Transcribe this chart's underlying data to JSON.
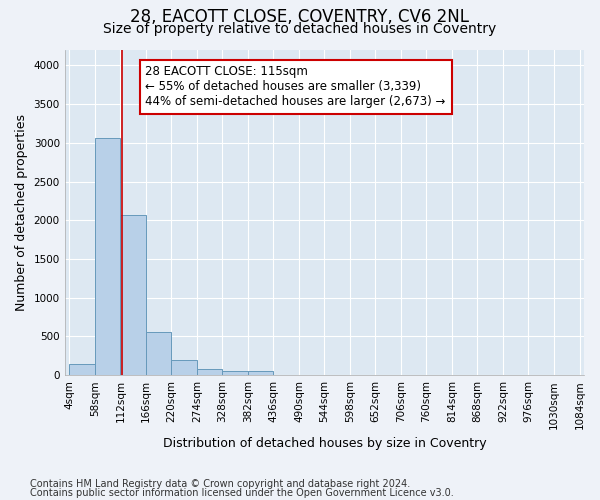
{
  "title_line1": "28, EACOTT CLOSE, COVENTRY, CV6 2NL",
  "title_line2": "Size of property relative to detached houses in Coventry",
  "xlabel": "Distribution of detached houses by size in Coventry",
  "ylabel": "Number of detached properties",
  "bar_edges": [
    4,
    58,
    112,
    166,
    220,
    274,
    328,
    382,
    436,
    490,
    544,
    598,
    652,
    706,
    760,
    814,
    868,
    922,
    976,
    1030,
    1084
  ],
  "bar_heights": [
    150,
    3060,
    2070,
    560,
    200,
    75,
    60,
    50,
    0,
    0,
    0,
    0,
    0,
    0,
    0,
    0,
    0,
    0,
    0,
    0
  ],
  "bar_color": "#b8d0e8",
  "bar_edgecolor": "#6699bb",
  "vline_x": 115,
  "vline_color": "#cc0000",
  "annotation_text": "28 EACOTT CLOSE: 115sqm\n← 55% of detached houses are smaller (3,339)\n44% of semi-detached houses are larger (2,673) →",
  "annotation_box_color": "#cc0000",
  "annotation_bg": "white",
  "ylim": [
    0,
    4200
  ],
  "yticks": [
    0,
    500,
    1000,
    1500,
    2000,
    2500,
    3000,
    3500,
    4000
  ],
  "bg_color": "#eef2f8",
  "plot_bg_color": "#dde8f2",
  "footer_line1": "Contains HM Land Registry data © Crown copyright and database right 2024.",
  "footer_line2": "Contains public sector information licensed under the Open Government Licence v3.0.",
  "title1_fontsize": 12,
  "title2_fontsize": 10,
  "axis_label_fontsize": 9,
  "tick_fontsize": 7.5,
  "annotation_fontsize": 8.5,
  "footer_fontsize": 7
}
